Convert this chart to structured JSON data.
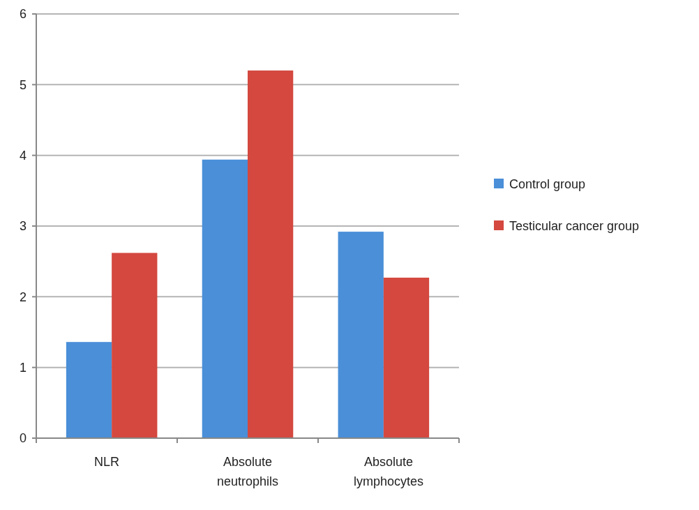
{
  "chart_data": {
    "type": "bar",
    "categories": [
      "NLR",
      "Absolute\nneutrophils",
      "Absolute\nlymphocytes"
    ],
    "series": [
      {
        "name": "Control group",
        "color": "#4a8fd8",
        "values": [
          1.36,
          3.94,
          2.92
        ]
      },
      {
        "name": "Testicular cancer group",
        "color": "#d4483f",
        "values": [
          2.62,
          5.2,
          2.27
        ]
      }
    ],
    "ylim": [
      0,
      6
    ],
    "yticks": [
      0,
      1,
      2,
      3,
      4,
      5,
      6
    ],
    "grid": "y",
    "legend": "right"
  }
}
